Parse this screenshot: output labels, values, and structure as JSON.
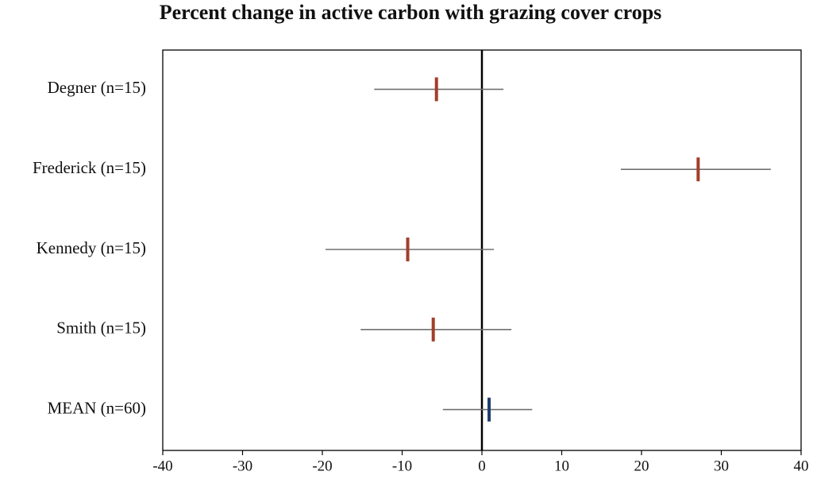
{
  "chart_data": {
    "type": "forest",
    "title": "Percent change in active carbon with grazing cover crops",
    "categories": [
      "Degner (n=15)",
      "Frederick (n=15)",
      "Kennedy (n=15)",
      "Smith (n=15)",
      "MEAN (n=60)"
    ],
    "values": [
      -5.7,
      27.1,
      -9.3,
      -6.1,
      0.9
    ],
    "lower": [
      -13.5,
      17.4,
      -19.6,
      -15.2,
      -4.9
    ],
    "upper": [
      2.7,
      36.2,
      1.5,
      3.7,
      6.3
    ],
    "colors": [
      "#a23e2a",
      "#a23e2a",
      "#a23e2a",
      "#a23e2a",
      "#1f3d6b"
    ],
    "whisker_color": "#707070",
    "reference_line": 0,
    "xlim": [
      -40,
      40
    ],
    "xticks": [
      -40,
      -30,
      -20,
      -10,
      0,
      10,
      20,
      30,
      40
    ]
  }
}
